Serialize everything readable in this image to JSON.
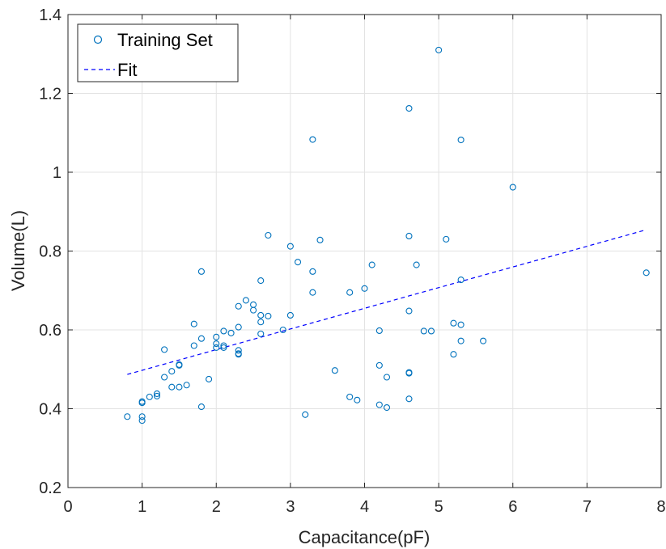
{
  "chart_data": {
    "type": "scatter",
    "xlabel": "Capacitance(pF)",
    "ylabel": "Volume(L)",
    "xlim": [
      0,
      8
    ],
    "ylim": [
      0.2,
      1.4
    ],
    "xticks": [
      "0",
      "1",
      "2",
      "3",
      "4",
      "5",
      "6",
      "7",
      "8"
    ],
    "yticks": [
      "0.2",
      "0.4",
      "0.6",
      "0.8",
      "1",
      "1.2",
      "1.4"
    ],
    "grid": true,
    "legend_position": "top-left",
    "series": [
      {
        "name": "Training Set",
        "marker": "circle",
        "color": "#0072BD",
        "points": [
          [
            0.8,
            0.38
          ],
          [
            1.0,
            0.37
          ],
          [
            1.0,
            0.38
          ],
          [
            1.0,
            0.415
          ],
          [
            1.0,
            0.418
          ],
          [
            1.1,
            0.43
          ],
          [
            1.2,
            0.432
          ],
          [
            1.2,
            0.438
          ],
          [
            1.3,
            0.48
          ],
          [
            1.3,
            0.55
          ],
          [
            1.4,
            0.455
          ],
          [
            1.4,
            0.495
          ],
          [
            1.5,
            0.455
          ],
          [
            1.5,
            0.51
          ],
          [
            1.5,
            0.512
          ],
          [
            1.6,
            0.46
          ],
          [
            1.7,
            0.56
          ],
          [
            1.7,
            0.615
          ],
          [
            1.8,
            0.405
          ],
          [
            1.8,
            0.578
          ],
          [
            1.8,
            0.748
          ],
          [
            1.9,
            0.475
          ],
          [
            2.0,
            0.555
          ],
          [
            2.0,
            0.565
          ],
          [
            2.0,
            0.582
          ],
          [
            2.1,
            0.555
          ],
          [
            2.1,
            0.56
          ],
          [
            2.1,
            0.597
          ],
          [
            2.2,
            0.592
          ],
          [
            2.3,
            0.538
          ],
          [
            2.3,
            0.54
          ],
          [
            2.3,
            0.548
          ],
          [
            2.3,
            0.607
          ],
          [
            2.3,
            0.66
          ],
          [
            2.4,
            0.675
          ],
          [
            2.5,
            0.65
          ],
          [
            2.5,
            0.664
          ],
          [
            2.6,
            0.59
          ],
          [
            2.6,
            0.62
          ],
          [
            2.6,
            0.637
          ],
          [
            2.6,
            0.725
          ],
          [
            2.7,
            0.635
          ],
          [
            2.7,
            0.84
          ],
          [
            2.9,
            0.6
          ],
          [
            3.0,
            0.637
          ],
          [
            3.0,
            0.812
          ],
          [
            3.1,
            0.772
          ],
          [
            3.2,
            0.385
          ],
          [
            3.3,
            0.695
          ],
          [
            3.3,
            0.748
          ],
          [
            3.3,
            1.083
          ],
          [
            3.4,
            0.828
          ],
          [
            3.6,
            0.497
          ],
          [
            3.8,
            0.43
          ],
          [
            3.8,
            0.695
          ],
          [
            3.9,
            0.422
          ],
          [
            4.0,
            0.705
          ],
          [
            4.1,
            0.765
          ],
          [
            4.2,
            0.598
          ],
          [
            4.2,
            0.51
          ],
          [
            4.2,
            0.41
          ],
          [
            4.3,
            0.48
          ],
          [
            4.3,
            0.403
          ],
          [
            4.6,
            0.425
          ],
          [
            4.6,
            0.49
          ],
          [
            4.6,
            0.492
          ],
          [
            4.6,
            0.648
          ],
          [
            4.6,
            0.838
          ],
          [
            4.6,
            1.162
          ],
          [
            4.7,
            0.765
          ],
          [
            4.8,
            0.597
          ],
          [
            4.9,
            0.597
          ],
          [
            5.0,
            1.31
          ],
          [
            5.1,
            0.83
          ],
          [
            5.2,
            0.538
          ],
          [
            5.2,
            0.617
          ],
          [
            5.3,
            0.572
          ],
          [
            5.3,
            0.613
          ],
          [
            5.3,
            0.727
          ],
          [
            5.3,
            1.082
          ],
          [
            5.6,
            0.572
          ],
          [
            6.0,
            0.962
          ],
          [
            7.8,
            0.745
          ]
        ]
      },
      {
        "name": "Fit",
        "type": "line",
        "style": "dashed",
        "color": "#0000FF",
        "points": [
          [
            0.8,
            0.487
          ],
          [
            7.8,
            0.854
          ]
        ]
      }
    ]
  }
}
